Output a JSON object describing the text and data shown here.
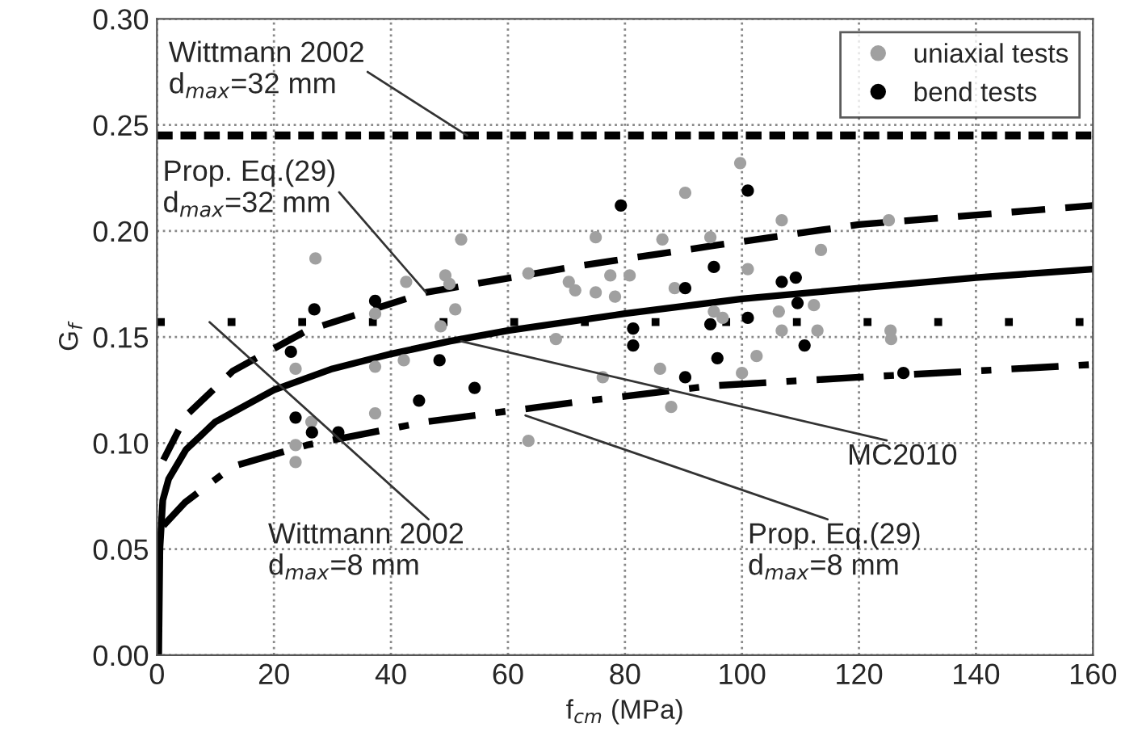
{
  "chart_data": {
    "type": "scatter",
    "xlabel": "f$_{cm}$ (MPa)",
    "ylabel": "G$_{f}$",
    "xlim": [
      0,
      160
    ],
    "xticks": [
      0,
      20,
      40,
      60,
      80,
      100,
      120,
      140,
      160
    ],
    "ylim": [
      0,
      0.3
    ],
    "yticks": [
      {
        "value": 0,
        "label": "0.00"
      },
      {
        "value": 0.05,
        "label": "0.05"
      },
      {
        "value": 0.1,
        "label": "0.10"
      },
      {
        "value": 0.15,
        "label": "0.15"
      },
      {
        "value": 0.2,
        "label": "0.20"
      },
      {
        "value": 0.25,
        "label": "0.25"
      },
      {
        "value": 0.3,
        "label": "0.30"
      }
    ],
    "grid": true,
    "legend": "top right",
    "marker": "circle",
    "series": [
      {
        "name": "uniaxial tests",
        "color": "#a0a0a0",
        "x": [
          23.7,
          27.1,
          26.4,
          23.7,
          23.7,
          37.3,
          37.3,
          37.3,
          42.6,
          42.2,
          49.3,
          50,
          48.5,
          52,
          51,
          63.5,
          63.5,
          68.2,
          70.4,
          71.5,
          75,
          75,
          76.2,
          77.5,
          78.3,
          80.8,
          86.4,
          86,
          87.9,
          88.5,
          90.3,
          94.6,
          96.7,
          99.7,
          100,
          101,
          102.5,
          106.8,
          106.8,
          106.3,
          112.3,
          113.5,
          112.9,
          125.1,
          125.4,
          125.5,
          95.2
        ],
        "values": [
          0.135,
          0.187,
          0.11,
          0.099,
          0.091,
          0.161,
          0.136,
          0.114,
          0.176,
          0.139,
          0.179,
          0.175,
          0.155,
          0.196,
          0.163,
          0.18,
          0.101,
          0.149,
          0.176,
          0.172,
          0.197,
          0.171,
          0.131,
          0.179,
          0.169,
          0.179,
          0.196,
          0.135,
          0.117,
          0.173,
          0.218,
          0.197,
          0.159,
          0.232,
          0.133,
          0.182,
          0.141,
          0.205,
          0.153,
          0.162,
          0.165,
          0.191,
          0.153,
          0.205,
          0.153,
          0.149,
          0.162
        ]
      },
      {
        "name": "bend tests",
        "color": "#000000",
        "x": [
          22.9,
          23.7,
          26.9,
          26.5,
          31,
          37.3,
          44.8,
          48.3,
          54.3,
          79.3,
          81.4,
          81.4,
          90.3,
          90.3,
          94.6,
          95.2,
          95.8,
          101,
          101,
          106.8,
          109.2,
          109.5,
          110.7,
          127.6
        ],
        "values": [
          0.143,
          0.112,
          0.163,
          0.105,
          0.105,
          0.167,
          0.12,
          0.139,
          0.126,
          0.212,
          0.154,
          0.146,
          0.173,
          0.131,
          0.156,
          0.183,
          0.14,
          0.219,
          0.159,
          0.176,
          0.178,
          0.166,
          0.146,
          0.133
        ]
      },
      {
        "type": "line",
        "color": "#000000",
        "line_style": "solid",
        "marker": "none",
        "x": [
          0.3,
          0.5,
          1,
          2,
          5,
          10,
          20,
          30,
          40,
          50,
          60,
          80,
          100,
          120,
          140,
          160
        ],
        "values": [
          0,
          0.05,
          0.073,
          0.083,
          0.097,
          0.11,
          0.125,
          0.135,
          0.142,
          0.148,
          0.153,
          0.161,
          0.168,
          0.173,
          0.178,
          0.182
        ]
      },
      {
        "type": "line",
        "color": "#000000",
        "line_style": "dashed",
        "marker": "none",
        "x": [
          1.1,
          5,
          13,
          25.6,
          46,
          71,
          95,
          120,
          160
        ],
        "values": [
          0.092,
          0.113,
          0.134,
          0.153,
          0.171,
          0.183,
          0.193,
          0.203,
          0.212
        ]
      },
      {
        "type": "line",
        "color": "#000000",
        "line_style": "dashdot",
        "marker": "none",
        "x": [
          1.1,
          4.8,
          13,
          25.6,
          46,
          71,
          95,
          120,
          160
        ],
        "values": [
          0.061,
          0.072,
          0.089,
          0.099,
          0.11,
          0.119,
          0.127,
          0.131,
          0.137
        ]
      }
    ],
    "ref_lines": [
      {
        "axis": "y",
        "value": 0.245,
        "color": "#000000",
        "line_style": "dashed"
      },
      {
        "axis": "y",
        "value": 0.157,
        "color": "#000000",
        "line_style": "dotted"
      }
    ],
    "annotations": [
      {
        "text": "Wittmann 2002\nd$_{max}$=32 mm",
        "x": 53,
        "y": 0.245
      },
      {
        "text": "Prop. Eq.(29)\nd$_{max}$=32 mm",
        "x": 46,
        "y": 0.171
      },
      {
        "text": "Wittmann 2002\nd$_{max}$=8 mm",
        "x": 9,
        "y": 0.157
      },
      {
        "text": "MC2010",
        "x": 52,
        "y": 0.148
      },
      {
        "text": "Prop. Eq.(29)\nd$_{max}$=8 mm",
        "x": 63,
        "y": 0.113
      }
    ]
  }
}
